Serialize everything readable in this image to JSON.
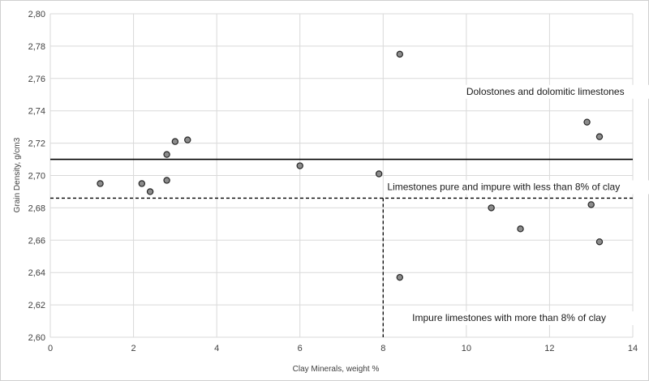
{
  "chart_data": {
    "type": "scatter",
    "title": "",
    "xlabel": "Clay Minerals, weight %",
    "ylabel": "Grain Density, g/cm3",
    "xlim": [
      0,
      14
    ],
    "ylim": [
      2.6,
      2.8
    ],
    "x_ticks": [
      "0",
      "2",
      "4",
      "6",
      "8",
      "10",
      "12",
      "14"
    ],
    "y_ticks": [
      "2,60",
      "2,62",
      "2,64",
      "2,66",
      "2,68",
      "2,70",
      "2,72",
      "2,74",
      "2,76",
      "2,78",
      "2,80"
    ],
    "grid": true,
    "points": [
      {
        "x": 1.2,
        "y": 2.695
      },
      {
        "x": 2.2,
        "y": 2.695
      },
      {
        "x": 2.4,
        "y": 2.69
      },
      {
        "x": 2.8,
        "y": 2.697
      },
      {
        "x": 2.8,
        "y": 2.713
      },
      {
        "x": 3.0,
        "y": 2.721
      },
      {
        "x": 3.3,
        "y": 2.722
      },
      {
        "x": 6.0,
        "y": 2.706
      },
      {
        "x": 7.9,
        "y": 2.701
      },
      {
        "x": 8.4,
        "y": 2.775
      },
      {
        "x": 8.4,
        "y": 2.637
      },
      {
        "x": 10.6,
        "y": 2.68
      },
      {
        "x": 11.3,
        "y": 2.667
      },
      {
        "x": 12.9,
        "y": 2.733
      },
      {
        "x": 13.2,
        "y": 2.724
      },
      {
        "x": 13.0,
        "y": 2.682
      },
      {
        "x": 13.2,
        "y": 2.659
      }
    ],
    "reference_lines": {
      "solid_horizontal_y": 2.71,
      "dashed_horizontal_y": 2.686,
      "dashed_vertical_x": 8.0
    },
    "annotations": [
      {
        "text": "Dolostones and dolomitic limestones",
        "x": 10.0,
        "y": 2.75
      },
      {
        "text": "Limestones pure and impure with less than 8% of clay",
        "x": 8.1,
        "y": 2.691
      },
      {
        "text": "Impure limestones with more than 8% of clay",
        "x": 8.7,
        "y": 2.61
      }
    ]
  }
}
